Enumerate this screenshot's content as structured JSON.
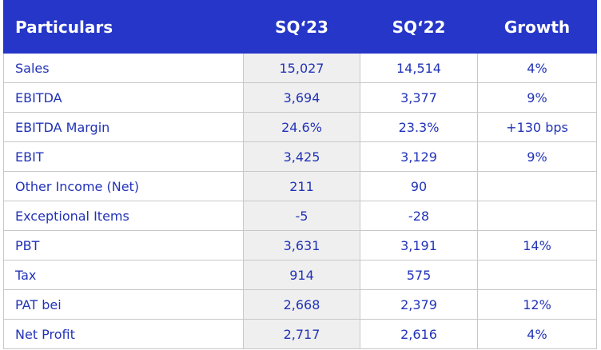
{
  "table": {
    "header": [
      "Particulars",
      "SQ‘23",
      "SQ‘22",
      "Growth"
    ],
    "rows": [
      [
        "Sales",
        "15,027",
        "14,514",
        "4%"
      ],
      [
        "EBITDA",
        "3,694",
        "3,377",
        "9%"
      ],
      [
        "EBITDA Margin",
        "24.6%",
        "23.3%",
        "+130 bps"
      ],
      [
        "EBIT",
        "3,425",
        "3,129",
        "9%"
      ],
      [
        "Other Income (Net)",
        "211",
        "90"
      ],
      [
        "Exceptional Items",
        "-5",
        "-28"
      ],
      [
        "PBT",
        "3,631",
        "3,191",
        "14%"
      ],
      [
        "Tax",
        "914",
        "575"
      ],
      [
        "PAT bei",
        "2,668",
        "2,379",
        "12%"
      ],
      [
        "Net Profit",
        "2,717",
        "2,616",
        "4%"
      ]
    ]
  }
}
